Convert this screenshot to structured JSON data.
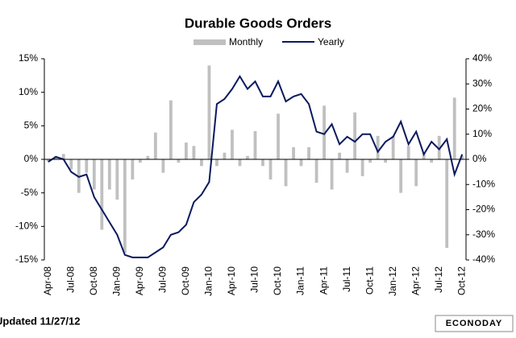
{
  "chart_data": {
    "type": "bar_line",
    "title": "Durable Goods Orders",
    "footnote": "Updated 11/27/12",
    "logo": "ECONODAY",
    "categories": [
      "Apr-08",
      null,
      null,
      "Jul-08",
      null,
      null,
      "Oct-08",
      null,
      null,
      "Jan-09",
      null,
      null,
      "Apr-09",
      null,
      null,
      "Jul-09",
      null,
      null,
      "Oct-09",
      null,
      null,
      "Jan-10",
      null,
      null,
      "Apr-10",
      null,
      null,
      "Jul-10",
      null,
      null,
      "Oct-10",
      null,
      null,
      "Jan-11",
      null,
      null,
      "Apr-11",
      null,
      null,
      "Jul-11",
      null,
      null,
      "Oct-11",
      null,
      null,
      "Jan-12",
      null,
      null,
      "Apr-12",
      null,
      null,
      "Jul-12",
      null,
      null,
      "Oct-12"
    ],
    "series": [
      {
        "name": "Monthly",
        "type": "bar",
        "color": "#c0c0c0",
        "values": [
          -0.3,
          0.5,
          0.8,
          -1.5,
          -5.0,
          -2.0,
          -4.5,
          -10.5,
          -4.5,
          -6.0,
          -14.0,
          -3.0,
          -0.5,
          0.5,
          4.0,
          -2.0,
          8.8,
          -0.5,
          2.5,
          2.0,
          -1.0,
          14.0,
          -1.0,
          1.0,
          4.4,
          -1.0,
          0.5,
          4.2,
          -1.0,
          -3.0,
          6.8,
          -4.0,
          1.8,
          -1.0,
          1.8,
          -3.5,
          8.0,
          -4.5,
          1.0,
          -2.0,
          7.0,
          -2.5,
          -0.5,
          3.5,
          -0.5,
          3.5,
          -5.0,
          2.0,
          -4.0,
          1.0,
          -0.5,
          3.5,
          -13.2,
          9.2,
          0.5
        ]
      },
      {
        "name": "Yearly",
        "type": "line",
        "axis": "y2",
        "color": "#0a1a60",
        "values": [
          -1,
          1,
          0,
          -5,
          -7,
          -6,
          -15,
          -20,
          -25,
          -30,
          -38,
          -39,
          -39,
          -39,
          -37,
          -35,
          -30,
          -29,
          -26,
          -17,
          -14,
          -9,
          22,
          24,
          28,
          33,
          28,
          31,
          25,
          25,
          31,
          23,
          25,
          26,
          22,
          11,
          10,
          14,
          6,
          9,
          7,
          10,
          10,
          3,
          7,
          9,
          15,
          6,
          11,
          2,
          7,
          4,
          8,
          -6,
          2
        ]
      }
    ],
    "ylim": [
      -15,
      15
    ],
    "yticks": [
      {
        "value": -15,
        "label": "-15%"
      },
      {
        "value": -10,
        "label": "-10%"
      },
      {
        "value": -5,
        "label": "-5%"
      },
      {
        "value": 0,
        "label": "0%"
      },
      {
        "value": 5,
        "label": "5%"
      },
      {
        "value": 10,
        "label": "10%"
      },
      {
        "value": 15,
        "label": "15%"
      }
    ],
    "y2lim": [
      -40,
      40
    ],
    "y2ticks": [
      {
        "value": -40,
        "label": "-40%"
      },
      {
        "value": -30,
        "label": "-30%"
      },
      {
        "value": -20,
        "label": "-20%"
      },
      {
        "value": -10,
        "label": "-10%"
      },
      {
        "value": 0,
        "label": "0%"
      },
      {
        "value": 10,
        "label": "10%"
      },
      {
        "value": 20,
        "label": "20%"
      },
      {
        "value": 30,
        "label": "30%"
      },
      {
        "value": 40,
        "label": "40%"
      }
    ]
  }
}
